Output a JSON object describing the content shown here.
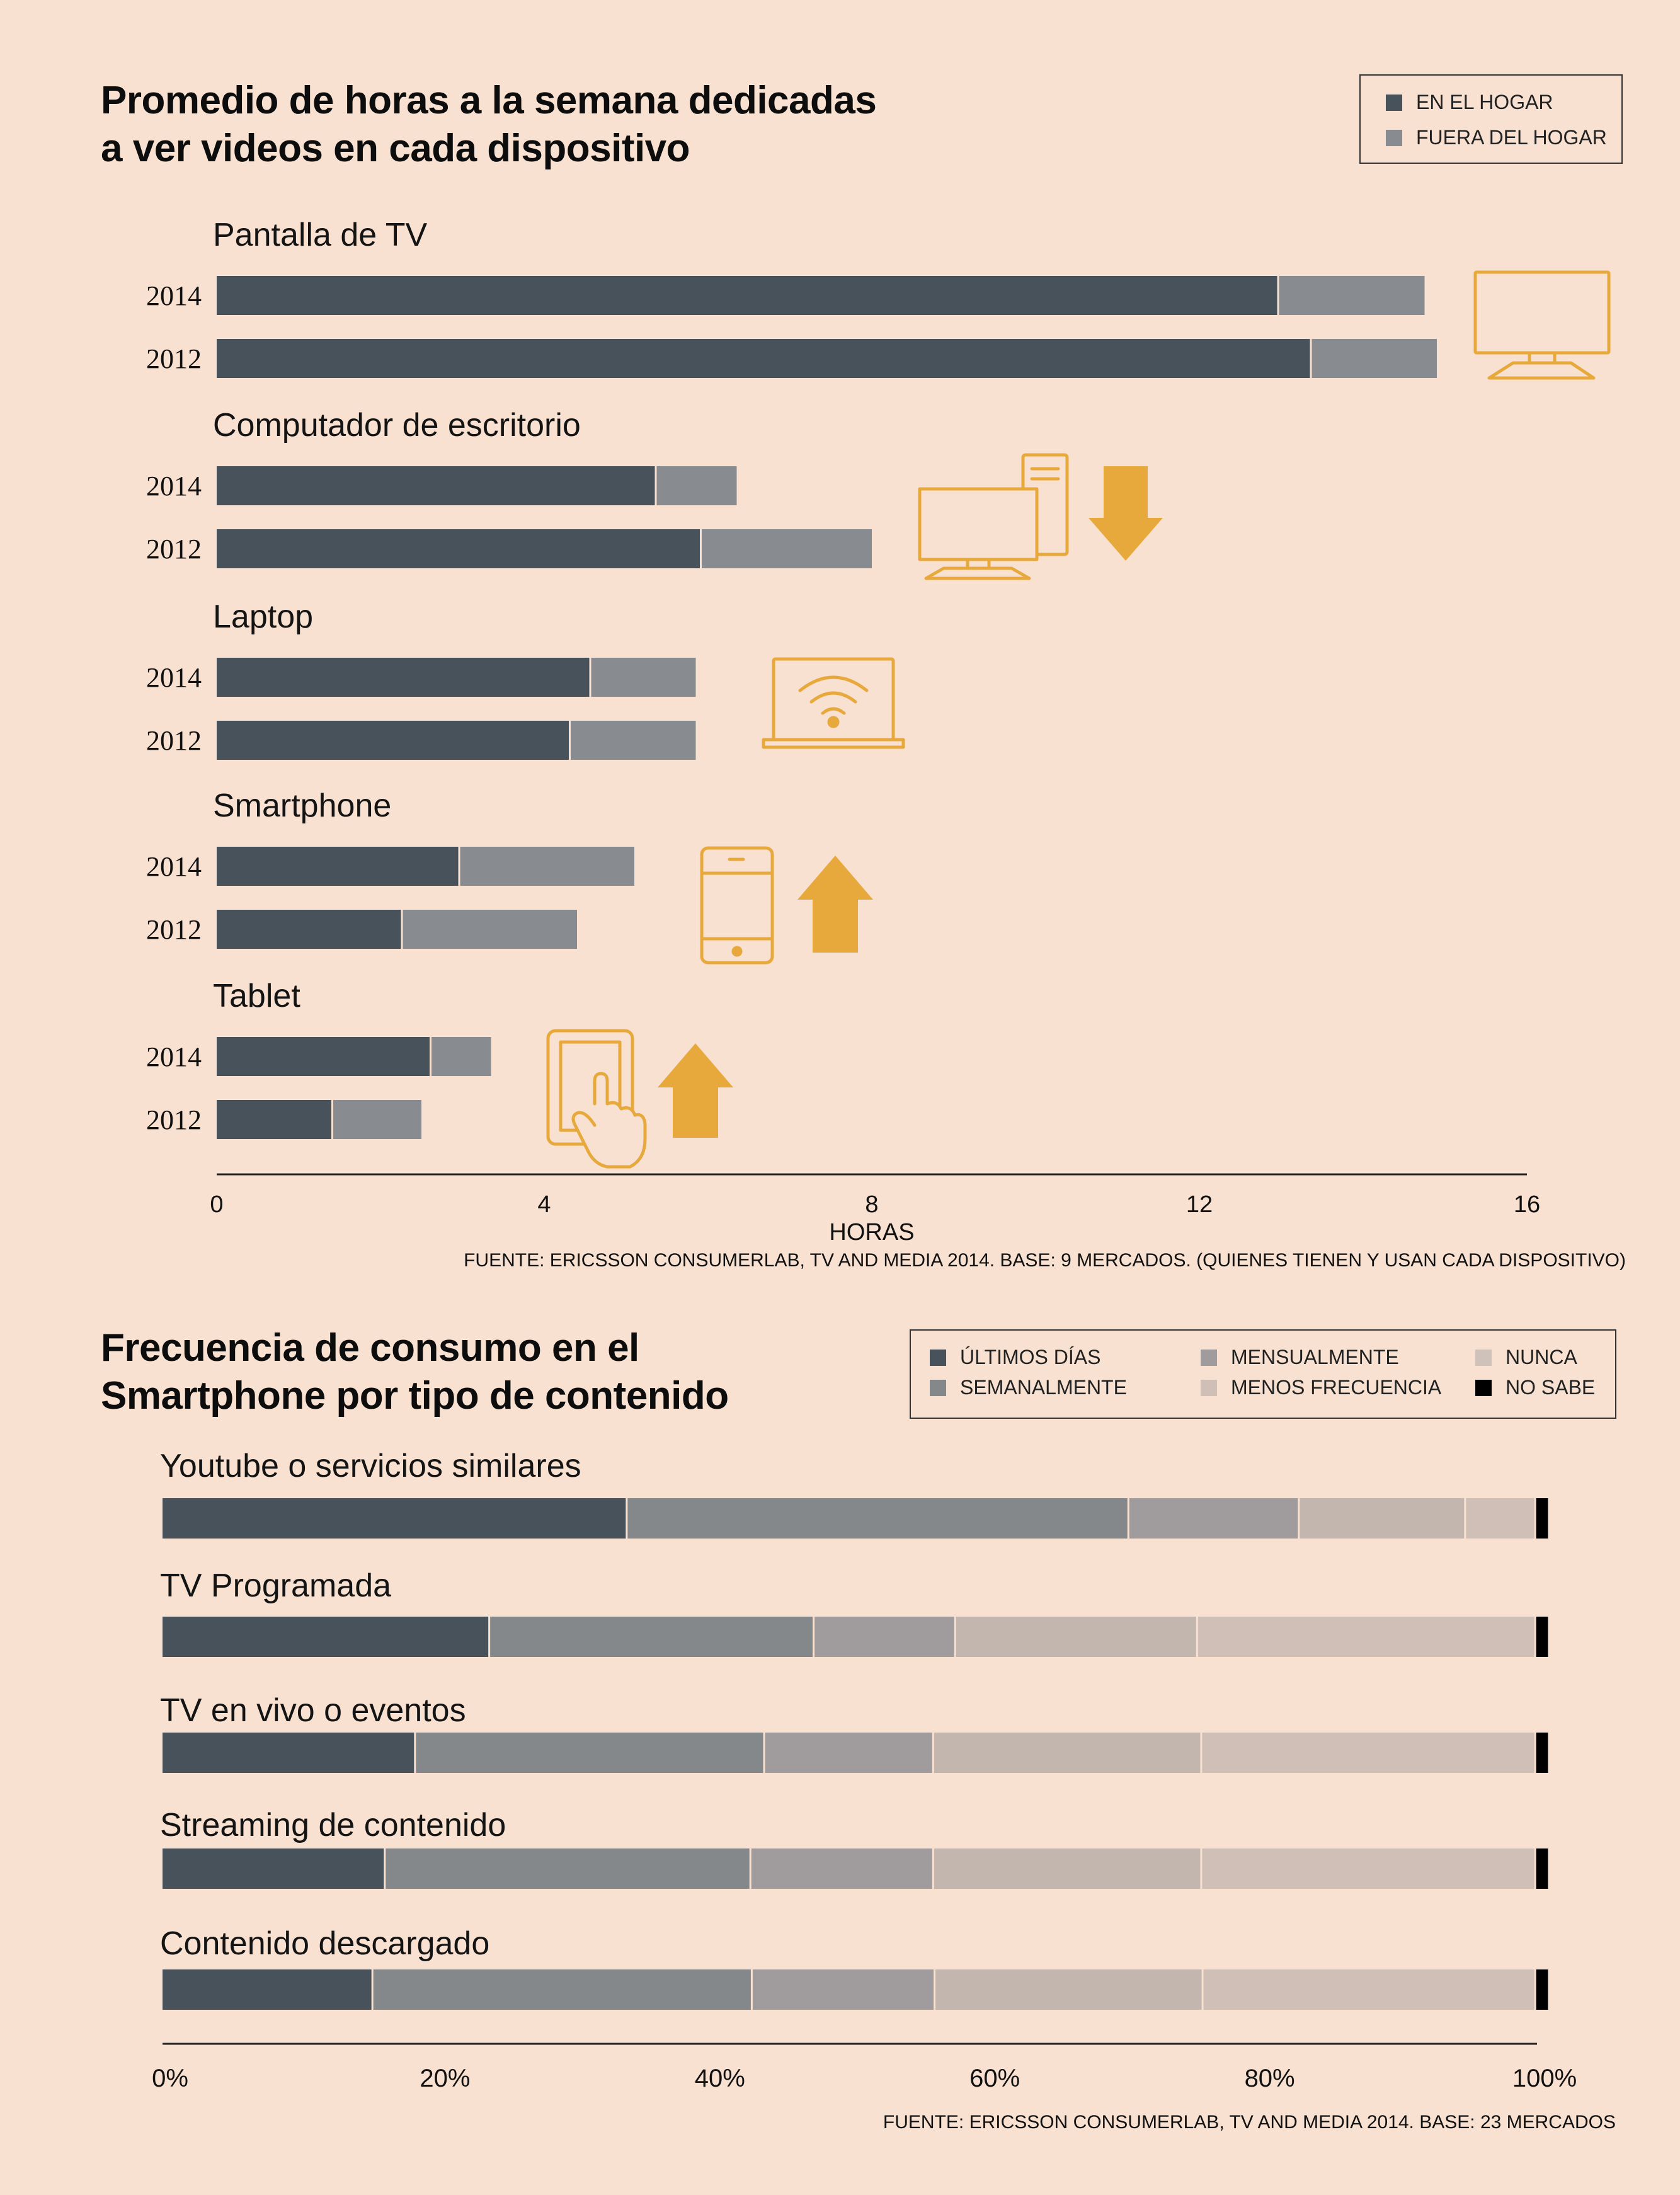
{
  "colors": {
    "background": "#f8e1d0",
    "home": "#48525b",
    "away": "#888b8f",
    "icon": "#e8a93c",
    "arrow": "#e8a93c",
    "freq": [
      "#48525b",
      "#85888b",
      "#a09c9d",
      "#c3b6ae",
      "#cfbfb6",
      "#000000"
    ]
  },
  "chart_data": [
    {
      "type": "bar",
      "orientation": "horizontal",
      "stacked": true,
      "title": "Promedio de horas a la semana dedicadas a ver videos en cada dispositivo",
      "title_lines": [
        "Promedio de horas a la semana dedicadas",
        "a ver videos en cada dispositivo"
      ],
      "xlabel": "HORAS",
      "xlim": [
        0,
        16
      ],
      "xticks": [
        "0",
        "4",
        "8",
        "12",
        "16"
      ],
      "series_names": [
        "EN EL HOGAR",
        "FUERA DEL HOGAR"
      ],
      "legend_position": "top-right",
      "groups": [
        {
          "label": "Pantalla de TV",
          "icon": "tv-icon",
          "trend": "none",
          "rows": [
            {
              "year": "2014",
              "home": 12.95,
              "away": 1.8
            },
            {
              "year": "2012",
              "home": 13.35,
              "away": 1.55
            }
          ]
        },
        {
          "label": "Computador de escritorio",
          "icon": "desktop-computer-icon",
          "trend": "down",
          "rows": [
            {
              "year": "2014",
              "home": 5.35,
              "away": 1.0
            },
            {
              "year": "2012",
              "home": 5.9,
              "away": 2.1
            }
          ]
        },
        {
          "label": "Laptop",
          "icon": "laptop-icon",
          "trend": "none",
          "rows": [
            {
              "year": "2014",
              "home": 4.55,
              "away": 1.3
            },
            {
              "year": "2012",
              "home": 4.3,
              "away": 1.55
            }
          ]
        },
        {
          "label": "Smartphone",
          "icon": "smartphone-icon",
          "trend": "up",
          "rows": [
            {
              "year": "2014",
              "home": 2.95,
              "away": 2.15
            },
            {
              "year": "2012",
              "home": 2.25,
              "away": 2.15
            }
          ]
        },
        {
          "label": "Tablet",
          "icon": "tablet-touch-icon",
          "trend": "up",
          "rows": [
            {
              "year": "2014",
              "home": 2.6,
              "away": 0.75
            },
            {
              "year": "2012",
              "home": 1.4,
              "away": 1.1
            }
          ]
        }
      ],
      "source": "FUENTE: ERICSSON CONSUMERLAB, TV AND MEDIA 2014. BASE: 9 MERCADOS. (QUIENES TIENEN Y USAN CADA DISPOSITIVO)"
    },
    {
      "type": "bar",
      "orientation": "horizontal",
      "stacked": true,
      "title": "Frecuencia de consumo en el Smartphone por tipo de contenido",
      "title_lines": [
        "Frecuencia de consumo en el",
        "Smartphone por tipo de contenido"
      ],
      "xlim": [
        0,
        100
      ],
      "xticks": [
        "0%",
        "20%",
        "40%",
        "60%",
        "80%",
        "100%"
      ],
      "legend_position": "top-right",
      "series_names": [
        "ÚLTIMOS DÍAS",
        "SEMANALMENTE",
        "MENSUALMENTE",
        "MENOS FRECUENCIA",
        "NUNCA",
        "NO SABE"
      ],
      "categories": [
        "Youtube o servicios similares",
        "TV Programada",
        "TV en vivo o eventos",
        "Streaming de contenido",
        "Contenido descargado"
      ],
      "series": [
        {
          "name": "ÚLTIMOS DÍAS",
          "values": [
            33.7,
            23.7,
            18.3,
            16.1,
            15.2
          ]
        },
        {
          "name": "SEMANALMENTE",
          "values": [
            36.5,
            23.6,
            25.4,
            26.6,
            27.6
          ]
        },
        {
          "name": "MENSUALMENTE",
          "values": [
            12.4,
            10.3,
            12.3,
            13.3,
            13.3
          ]
        },
        {
          "name": "MENOS FRECUENCIA",
          "values": [
            12.1,
            17.6,
            19.5,
            19.5,
            19.5
          ]
        },
        {
          "name": "NUNCA",
          "values": [
            5.1,
            24.6,
            24.3,
            24.3,
            24.2
          ]
        },
        {
          "name": "NO SABE",
          "values": [
            1.0,
            1.0,
            1.0,
            1.0,
            1.0
          ]
        }
      ],
      "source": "FUENTE: ERICSSON CONSUMERLAB, TV AND MEDIA 2014. BASE: 23 MERCADOS"
    }
  ]
}
